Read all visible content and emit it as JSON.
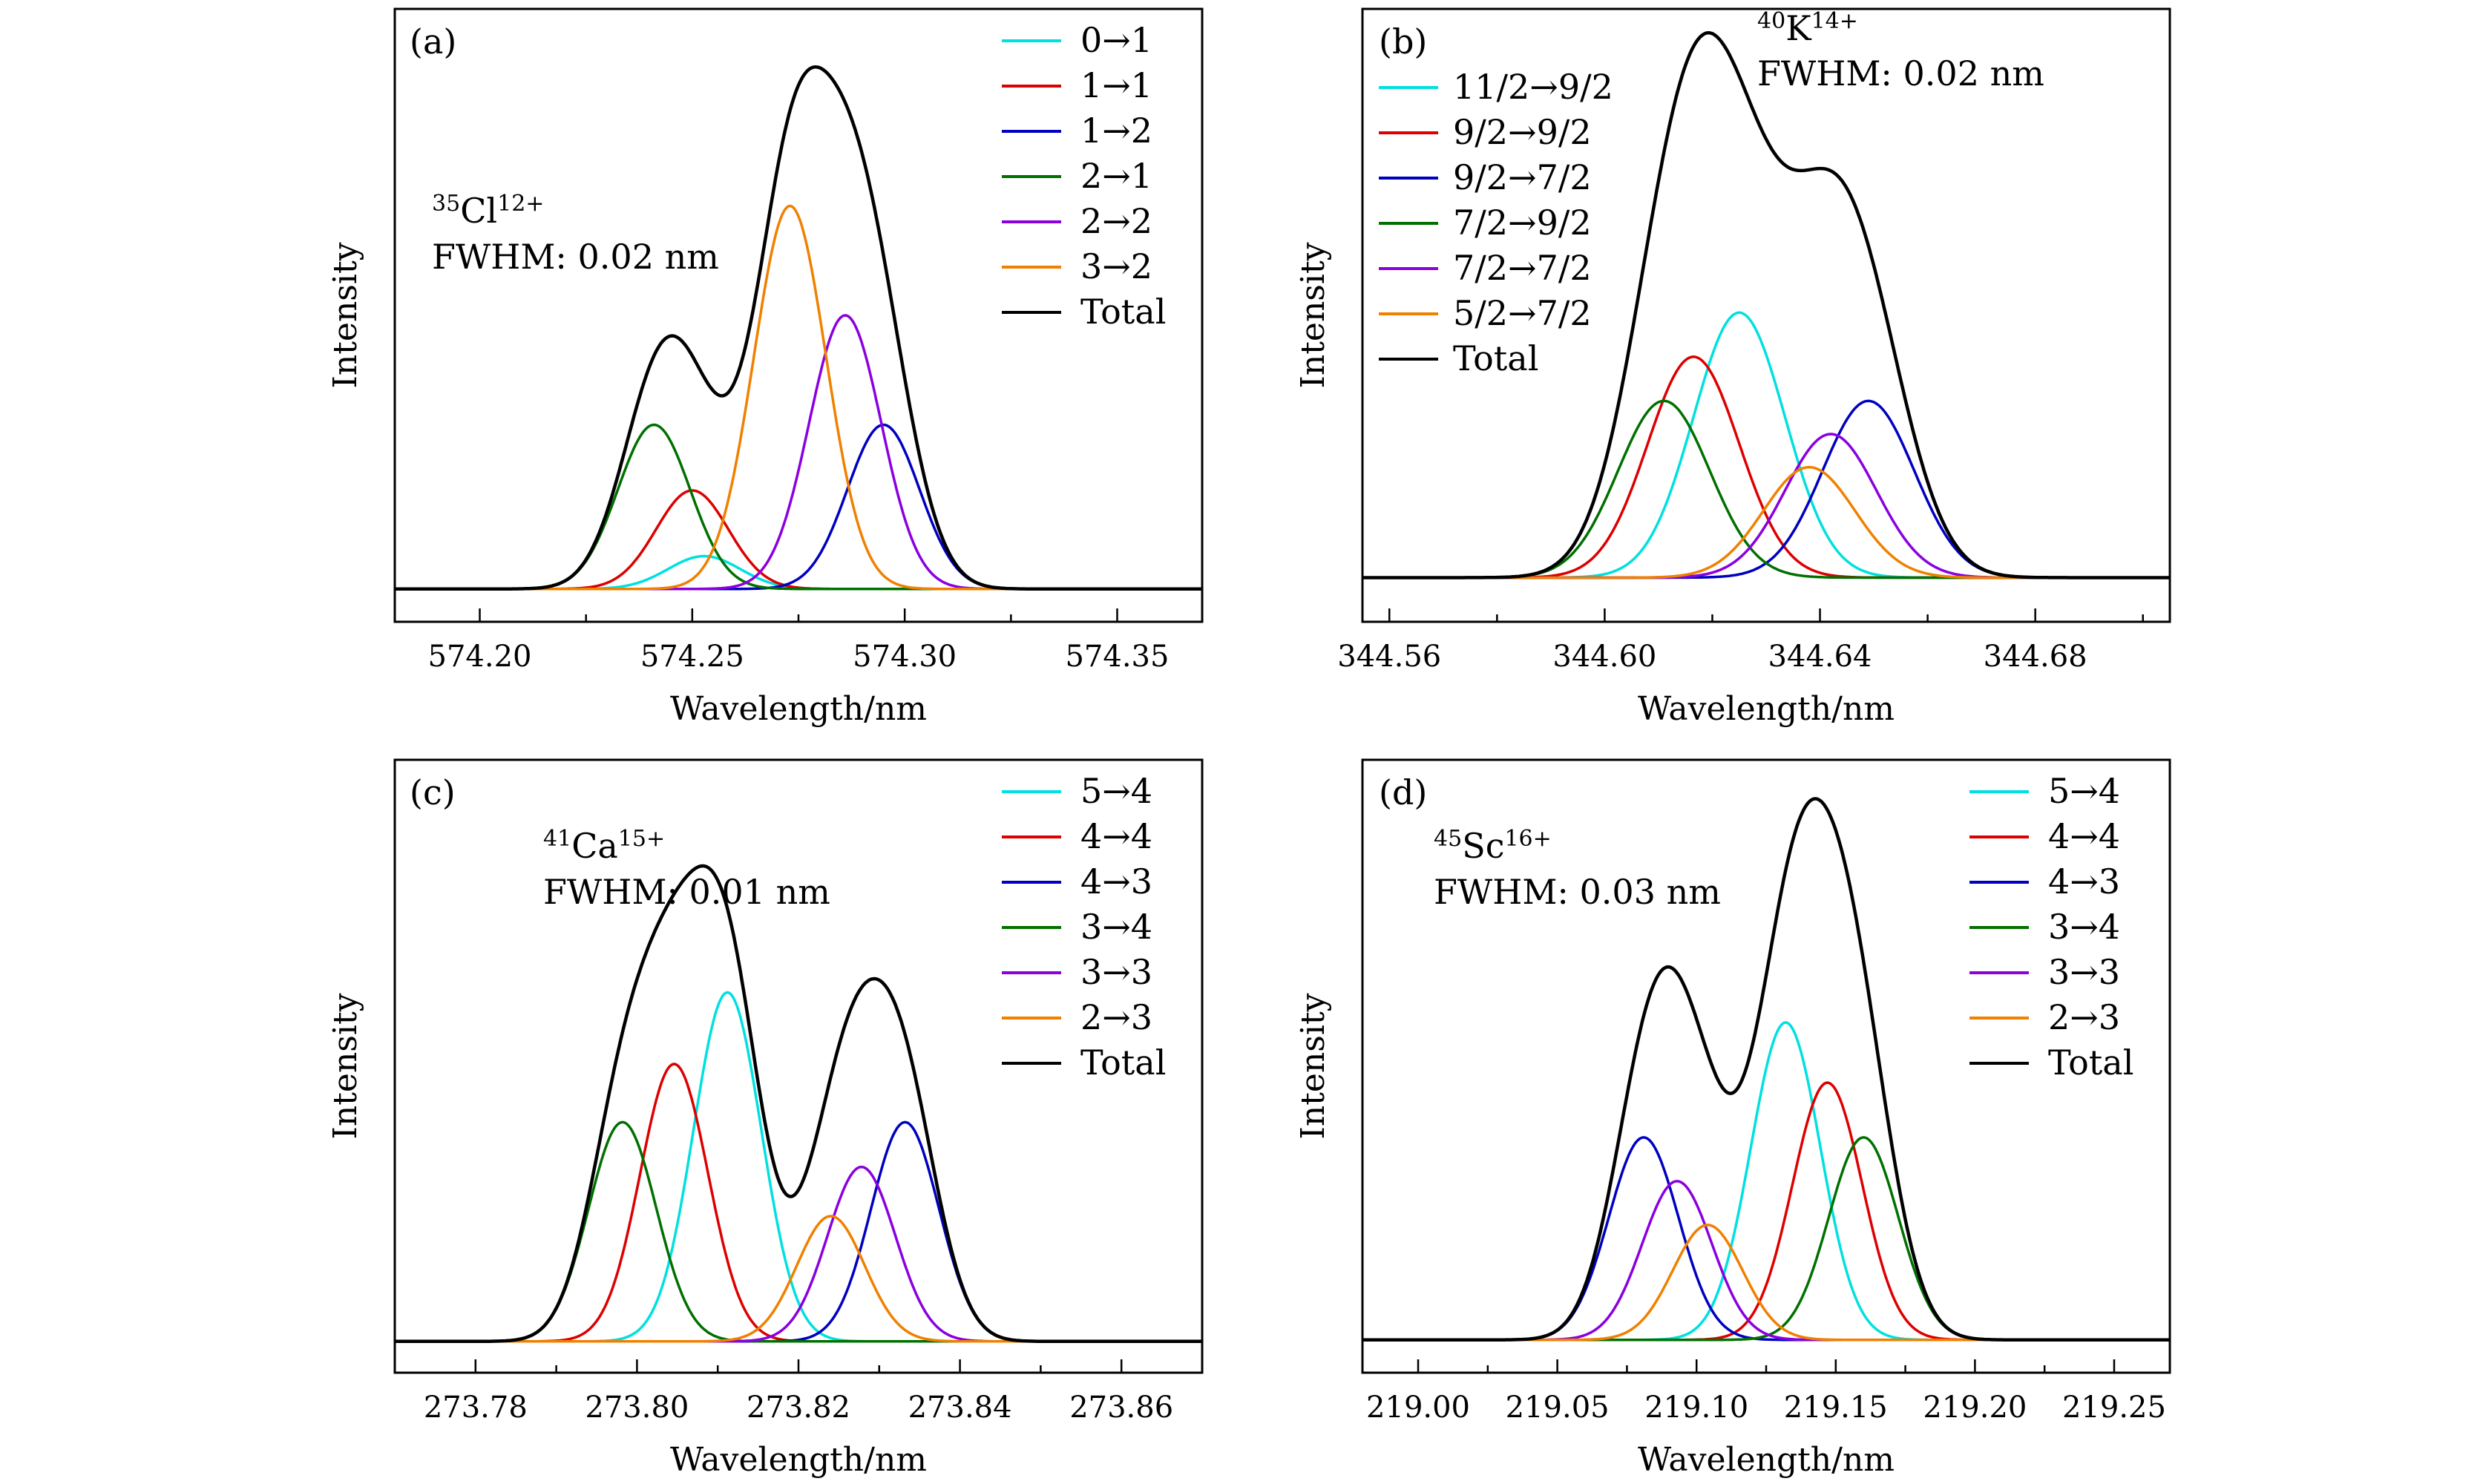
{
  "chart_data": [
    {
      "type": "line",
      "panel_label": "(a)",
      "annotation": {
        "iso_mass": "35",
        "element": "Cl",
        "charge": "12+",
        "fwhm": "FWHM: 0.02 nm"
      },
      "xlabel": "Wavelength/nm",
      "ylabel": "Intensity",
      "xlim": [
        574.18,
        574.37
      ],
      "ylim": [
        -0.06,
        1.06
      ],
      "xticks": [
        574.2,
        574.25,
        574.3,
        574.35
      ],
      "xtick_labels": [
        "574.20",
        "574.25",
        "574.30",
        "574.35"
      ],
      "sigma": 0.0085,
      "legend_position": "top-right",
      "series": [
        {
          "name": "0→1",
          "color": "#00e0e0",
          "center": 574.2528,
          "amplitude": 0.06
        },
        {
          "name": "1→1",
          "color": "#dd0000",
          "center": 574.25,
          "amplitude": 0.18
        },
        {
          "name": "1→2",
          "color": "#0000c0",
          "center": 574.295,
          "amplitude": 0.3
        },
        {
          "name": "2→1",
          "color": "#007000",
          "center": 574.241,
          "amplitude": 0.3
        },
        {
          "name": "2→2",
          "color": "#8a00e0",
          "center": 574.286,
          "amplitude": 0.5
        },
        {
          "name": "3→2",
          "color": "#f08000",
          "center": 574.273,
          "amplitude": 0.7
        },
        {
          "name": "Total",
          "color": "#000000",
          "total": true
        }
      ]
    },
    {
      "type": "line",
      "panel_label": "(b)",
      "annotation": {
        "iso_mass": "40",
        "element": "K",
        "charge": "14+",
        "fwhm": "FWHM: 0.02 nm"
      },
      "xlabel": "Wavelength/nm",
      "ylabel": "Intensity",
      "xlim": [
        344.555,
        344.705
      ],
      "ylim": [
        -0.08,
        1.03
      ],
      "xticks": [
        344.56,
        344.6,
        344.64,
        344.68
      ],
      "xtick_labels": [
        "344.56",
        "344.60",
        "344.64",
        "344.68"
      ],
      "sigma": 0.0085,
      "legend_position": "top-left",
      "series": [
        {
          "name": "11/2→9/2",
          "color": "#00e0e0",
          "center": 344.625,
          "amplitude": 0.48
        },
        {
          "name": "9/2→9/2",
          "color": "#dd0000",
          "center": 344.6165,
          "amplitude": 0.4
        },
        {
          "name": "9/2→7/2",
          "color": "#0000c0",
          "center": 344.649,
          "amplitude": 0.32
        },
        {
          "name": "7/2→9/2",
          "color": "#007000",
          "center": 344.611,
          "amplitude": 0.32
        },
        {
          "name": "7/2→7/2",
          "color": "#8a00e0",
          "center": 344.642,
          "amplitude": 0.26
        },
        {
          "name": "5/2→7/2",
          "color": "#f08000",
          "center": 344.638,
          "amplitude": 0.2
        },
        {
          "name": "Total",
          "color": "#000000",
          "total": true
        }
      ]
    },
    {
      "type": "line",
      "panel_label": "(c)",
      "annotation": {
        "iso_mass": "41",
        "element": "Ca",
        "charge": "15+",
        "fwhm": "FWHM: 0.01 nm"
      },
      "xlabel": "Wavelength/nm",
      "ylabel": "Intensity",
      "xlim": [
        273.77,
        273.87
      ],
      "ylim": [
        -0.07,
        1.3
      ],
      "xticks": [
        273.78,
        273.8,
        273.82,
        273.84,
        273.86
      ],
      "xtick_labels": [
        "273.78",
        "273.80",
        "273.82",
        "273.84",
        "273.86"
      ],
      "sigma": 0.0042,
      "legend_position": "top-right",
      "series": [
        {
          "name": "5→4",
          "color": "#00e0e0",
          "center": 273.8112,
          "amplitude": 0.78
        },
        {
          "name": "4→4",
          "color": "#dd0000",
          "center": 273.8046,
          "amplitude": 0.62
        },
        {
          "name": "4→3",
          "color": "#0000c0",
          "center": 273.8332,
          "amplitude": 0.49
        },
        {
          "name": "3→4",
          "color": "#007000",
          "center": 273.7982,
          "amplitude": 0.49
        },
        {
          "name": "3→3",
          "color": "#8a00e0",
          "center": 273.8278,
          "amplitude": 0.39
        },
        {
          "name": "2→3",
          "color": "#f08000",
          "center": 273.824,
          "amplitude": 0.28
        },
        {
          "name": "Total",
          "color": "#000000",
          "total": true
        }
      ]
    },
    {
      "type": "line",
      "panel_label": "(d)",
      "annotation": {
        "iso_mass": "45",
        "element": "Sc",
        "charge": "16+",
        "fwhm": "FWHM: 0.03 nm"
      },
      "xlabel": "Wavelength/nm",
      "ylabel": "Intensity",
      "xlim": [
        218.98,
        219.27
      ],
      "ylim": [
        -0.06,
        1.06
      ],
      "xticks": [
        219.0,
        219.05,
        219.1,
        219.15,
        219.2,
        219.25
      ],
      "xtick_labels": [
        "219.00",
        "219.05",
        "219.10",
        "219.15",
        "219.20",
        "219.25"
      ],
      "sigma": 0.0125,
      "legend_position": "top-right",
      "series": [
        {
          "name": "5→4",
          "color": "#00e0e0",
          "center": 219.132,
          "amplitude": 0.58
        },
        {
          "name": "4→4",
          "color": "#dd0000",
          "center": 219.147,
          "amplitude": 0.47
        },
        {
          "name": "4→3",
          "color": "#0000c0",
          "center": 219.081,
          "amplitude": 0.37
        },
        {
          "name": "3→4",
          "color": "#007000",
          "center": 219.16,
          "amplitude": 0.37
        },
        {
          "name": "3→3",
          "color": "#8a00e0",
          "center": 219.093,
          "amplitude": 0.29
        },
        {
          "name": "2→3",
          "color": "#f08000",
          "center": 219.104,
          "amplitude": 0.21
        },
        {
          "name": "Total",
          "color": "#000000",
          "total": true
        }
      ]
    }
  ]
}
